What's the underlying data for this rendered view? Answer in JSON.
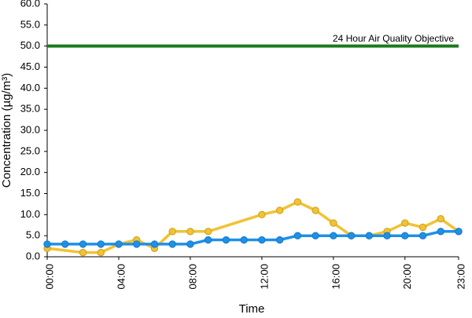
{
  "chart_data": {
    "type": "line",
    "title": "",
    "xlabel": "Time",
    "ylabel": "Concentration (µg/m³)",
    "ylim": [
      0,
      60
    ],
    "xlim": [
      0,
      23
    ],
    "y_ticks": [
      "0.0",
      "5.0",
      "10.0",
      "15.0",
      "20.0",
      "25.0",
      "30.0",
      "35.0",
      "40.0",
      "45.0",
      "50.0",
      "55.0",
      "60.0"
    ],
    "x_ticks": [
      {
        "hour": 0,
        "label": "00:00"
      },
      {
        "hour": 4,
        "label": "04:00"
      },
      {
        "hour": 8,
        "label": "08:00"
      },
      {
        "hour": 12,
        "label": "12:00"
      },
      {
        "hour": 16,
        "label": "16:00"
      },
      {
        "hour": 20,
        "label": "20:00"
      },
      {
        "hour": 23,
        "label": "23:00"
      }
    ],
    "grid": false,
    "reference_line": {
      "label": "24 Hour Air Quality Objective",
      "value": 50,
      "color": "#1a7a1a"
    },
    "x": [
      0,
      1,
      2,
      3,
      4,
      5,
      6,
      7,
      8,
      9,
      10,
      11,
      12,
      13,
      14,
      15,
      16,
      17,
      18,
      19,
      20,
      21,
      22,
      23
    ],
    "series": [
      {
        "color": "#f2c233",
        "values": [
          2,
          null,
          1,
          1,
          3,
          4,
          2,
          6,
          6,
          6,
          null,
          null,
          10,
          11,
          13,
          11,
          8,
          5,
          5,
          6,
          8,
          7,
          9,
          6
        ]
      },
      {
        "color": "#1e90e8",
        "values": [
          3,
          3,
          3,
          3,
          3,
          3,
          3,
          3,
          3,
          4,
          4,
          4,
          4,
          4,
          5,
          5,
          5,
          5,
          5,
          5,
          5,
          5,
          6,
          6
        ]
      }
    ]
  }
}
